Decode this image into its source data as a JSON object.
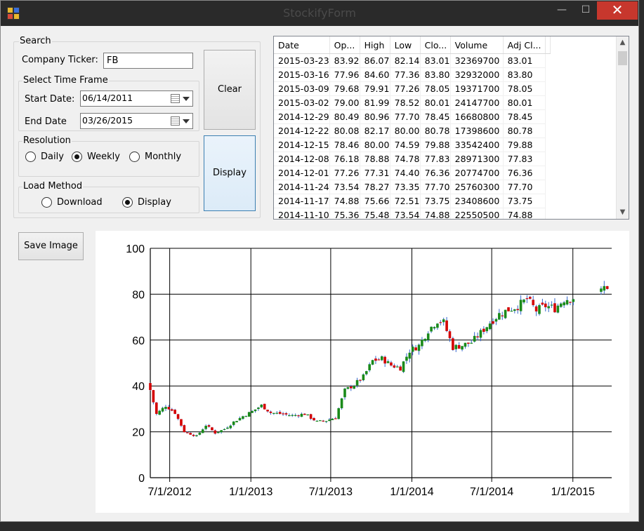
{
  "window": {
    "title": "StockifyForm",
    "minimize_label": "—",
    "maximize_label": "☐",
    "close_label": "✕"
  },
  "search": {
    "legend": "Search",
    "ticker_label": "Company Ticker:",
    "ticker_value": "FB",
    "timeframe": {
      "legend": "Select Time Frame",
      "start_label": "Start Date:",
      "start_value": "06/14/2011",
      "end_label": "End Date",
      "end_value": "03/26/2015"
    },
    "resolution": {
      "legend": "Resolution",
      "options": [
        "Daily",
        "Weekly",
        "Monthly"
      ],
      "selected": "Weekly"
    },
    "load_method": {
      "legend": "Load Method",
      "options": [
        "Download",
        "Display"
      ],
      "selected": "Display"
    }
  },
  "buttons": {
    "clear": "Clear",
    "display": "Display",
    "save_image": "Save Image"
  },
  "grid": {
    "columns": [
      "Date",
      "Op...",
      "High",
      "Low",
      "Clo...",
      "Volume",
      "Adj Cl..."
    ],
    "rows": [
      [
        "2015-03-23",
        "83.92",
        "86.07",
        "82.14",
        "83.01",
        "32369700",
        "83.01"
      ],
      [
        "2015-03-16",
        "77.96",
        "84.60",
        "77.36",
        "83.80",
        "32932000",
        "83.80"
      ],
      [
        "2015-03-09",
        "79.68",
        "79.91",
        "77.26",
        "78.05",
        "19371700",
        "78.05"
      ],
      [
        "2015-03-02",
        "79.00",
        "81.99",
        "78.52",
        "80.01",
        "24147700",
        "80.01"
      ],
      [
        "2014-12-29",
        "80.49",
        "80.96",
        "77.70",
        "78.45",
        "16680800",
        "78.45"
      ],
      [
        "2014-12-22",
        "80.08",
        "82.17",
        "80.00",
        "80.78",
        "17398600",
        "80.78"
      ],
      [
        "2014-12-15",
        "78.46",
        "80.00",
        "74.59",
        "79.88",
        "33542400",
        "79.88"
      ],
      [
        "2014-12-08",
        "76.18",
        "78.88",
        "74.78",
        "77.83",
        "28971300",
        "77.83"
      ],
      [
        "2014-12-01",
        "77.26",
        "77.31",
        "74.40",
        "76.36",
        "20774700",
        "76.36"
      ],
      [
        "2014-11-24",
        "73.54",
        "78.27",
        "73.35",
        "77.70",
        "25760300",
        "77.70"
      ],
      [
        "2014-11-17",
        "74.88",
        "75.66",
        "72.51",
        "73.75",
        "23408600",
        "73.75"
      ],
      [
        "2014-11-10",
        "75.36",
        "75.48",
        "73.54",
        "74.88",
        "22550500",
        "74.88"
      ]
    ]
  },
  "chart_data": {
    "type": "candlestick",
    "ylim": [
      0,
      100
    ],
    "yticks": [
      "0",
      "20",
      "40",
      "60",
      "80",
      "100"
    ],
    "xtick_labels": [
      "7/1/2012",
      "1/1/2013",
      "7/1/2013",
      "1/1/2014",
      "7/1/2014",
      "1/1/2015"
    ],
    "xlim": [
      "2012-05-18",
      "2015-03-30"
    ],
    "grid": true,
    "colors": {
      "up": "#1a8a1a",
      "down": "#d40000",
      "wick": "#3366cc"
    },
    "close_path": [
      [
        "2012-05-18",
        38.2
      ],
      [
        "2012-06-01",
        27.7
      ],
      [
        "2012-06-22",
        31.4
      ],
      [
        "2012-07-13",
        28.3
      ],
      [
        "2012-08-03",
        20.1
      ],
      [
        "2012-08-31",
        18.1
      ],
      [
        "2012-09-21",
        22.9
      ],
      [
        "2012-10-12",
        19.5
      ],
      [
        "2012-11-02",
        21.2
      ],
      [
        "2012-11-23",
        24.3
      ],
      [
        "2012-12-14",
        26.8
      ],
      [
        "2013-01-04",
        28.9
      ],
      [
        "2013-01-25",
        31.5
      ],
      [
        "2013-02-15",
        28.3
      ],
      [
        "2013-03-08",
        27.9
      ],
      [
        "2013-04-05",
        27.1
      ],
      [
        "2013-05-03",
        27.8
      ],
      [
        "2013-05-31",
        24.4
      ],
      [
        "2013-06-21",
        24.9
      ],
      [
        "2013-07-12",
        26.3
      ],
      [
        "2013-08-02",
        38.1
      ],
      [
        "2013-08-23",
        40.5
      ],
      [
        "2013-09-13",
        44.0
      ],
      [
        "2013-10-04",
        51.0
      ],
      [
        "2013-10-25",
        51.9
      ],
      [
        "2013-11-15",
        49.0
      ],
      [
        "2013-12-06",
        47.9
      ],
      [
        "2013-12-27",
        55.4
      ],
      [
        "2014-01-17",
        57.6
      ],
      [
        "2014-02-07",
        64.3
      ],
      [
        "2014-02-28",
        68.5
      ],
      [
        "2014-03-14",
        67.7
      ],
      [
        "2014-04-04",
        56.8
      ],
      [
        "2014-04-25",
        57.7
      ],
      [
        "2014-05-16",
        59.0
      ],
      [
        "2014-06-06",
        63.2
      ],
      [
        "2014-06-27",
        67.6
      ],
      [
        "2014-07-18",
        71.3
      ],
      [
        "2014-08-08",
        73.3
      ],
      [
        "2014-08-29",
        74.8
      ],
      [
        "2014-09-19",
        77.9
      ],
      [
        "2014-10-10",
        72.9
      ],
      [
        "2014-10-31",
        74.9
      ],
      [
        "2014-11-21",
        73.8
      ],
      [
        "2014-12-12",
        77.8
      ],
      [
        "2015-01-02",
        78.5
      ],
      [
        "2015-02-06",
        79.5
      ],
      [
        "2015-03-02",
        80.0
      ],
      [
        "2015-03-16",
        83.8
      ],
      [
        "2015-03-23",
        83.0
      ]
    ],
    "gaps": [
      [
        "2015-01-05",
        "2015-02-27"
      ]
    ]
  }
}
